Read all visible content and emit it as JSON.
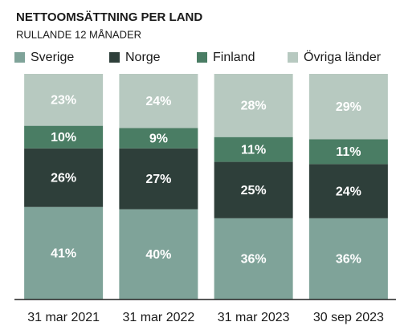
{
  "chart_data": {
    "type": "stacked_bar_100",
    "title": "NETTOOMSÄTTNING PER LAND",
    "subtitle": "RULLANDE 12 MÅNADER",
    "categories": [
      "31 mar 2021",
      "31 mar 2022",
      "31 mar 2023",
      "30 sep 2023"
    ],
    "series": [
      {
        "name": "Sverige",
        "color": "#7fa399",
        "values": [
          41,
          40,
          36,
          36
        ],
        "value_labels": [
          "41%",
          "40%",
          "36%",
          "36%"
        ]
      },
      {
        "name": "Norge",
        "color": "#2e3f3a",
        "values": [
          26,
          27,
          25,
          24
        ],
        "value_labels": [
          "26%",
          "27%",
          "25%",
          "24%"
        ]
      },
      {
        "name": "Finland",
        "color": "#4a7d64",
        "values": [
          10,
          9,
          11,
          11
        ],
        "value_labels": [
          "10%",
          "9%",
          "11%",
          "11%"
        ]
      },
      {
        "name": "Övriga länder",
        "color": "#b7c9c0",
        "values": [
          23,
          24,
          28,
          29
        ],
        "value_labels": [
          "23%",
          "24%",
          "28%",
          "29%"
        ]
      }
    ]
  }
}
